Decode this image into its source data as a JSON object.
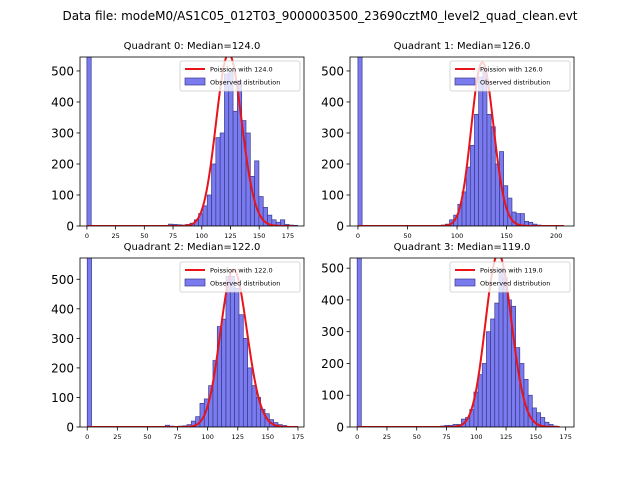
{
  "suptitle": "Data file: modeM0/AS1C05_012T03_9000003500_23690cztM0_level2_quad_clean.evt",
  "colors": {
    "bar_fill": "#7b7bf0",
    "bar_edge": "#3a3a8c",
    "poisson_line": "#e8141a",
    "axes": "#000000"
  },
  "legend_labels": {
    "observed": "Observed distribution"
  },
  "chart_data": [
    {
      "type": "bar",
      "title": "Quadrant 0: Median=124.0",
      "legend_poisson": "Poission with 124.0",
      "legend_location": "upper-right",
      "median": 124.0,
      "xlim": [
        -6,
        189
      ],
      "ylim": [
        0,
        545
      ],
      "xticks": [
        0,
        25,
        50,
        75,
        100,
        125,
        150,
        175
      ],
      "yticks": [
        0,
        100,
        200,
        300,
        400,
        500
      ],
      "bin_width": 3.75,
      "bins": [
        [
          0,
          3.75,
          565
        ],
        [
          71,
          74.75,
          6
        ],
        [
          74.75,
          78.5,
          5
        ],
        [
          78.5,
          82.25,
          4
        ],
        [
          82.25,
          86,
          3
        ],
        [
          86,
          89.75,
          5
        ],
        [
          89.75,
          93.5,
          9
        ],
        [
          93.5,
          97.25,
          20
        ],
        [
          97.25,
          101,
          40
        ],
        [
          101,
          104.75,
          65
        ],
        [
          104.75,
          108.5,
          100
        ],
        [
          108.5,
          112.25,
          200
        ],
        [
          112.25,
          116,
          285
        ],
        [
          116,
          119.75,
          300
        ],
        [
          119.75,
          123.5,
          490
        ],
        [
          123.5,
          127.25,
          500
        ],
        [
          127.25,
          131,
          370
        ],
        [
          131,
          134.75,
          470
        ],
        [
          134.75,
          138.5,
          340
        ],
        [
          138.5,
          142.25,
          300
        ],
        [
          142.25,
          146,
          160
        ],
        [
          146,
          149.75,
          210
        ],
        [
          149.75,
          153.5,
          95
        ],
        [
          153.5,
          157.25,
          60
        ],
        [
          157.25,
          161,
          35
        ],
        [
          161,
          164.75,
          20
        ],
        [
          164.75,
          168.5,
          12
        ],
        [
          168.5,
          172.25,
          20
        ],
        [
          172.25,
          176,
          5
        ],
        [
          176,
          179.75,
          3
        ],
        [
          179.75,
          183.5,
          2
        ]
      ],
      "poisson_range": [
        0,
        180
      ]
    },
    {
      "type": "bar",
      "title": "Quadrant 1: Median=126.0",
      "legend_poisson": "Poission with 126.0",
      "legend_location": "upper-right",
      "median": 126.0,
      "xlim": [
        -8,
        218
      ],
      "ylim": [
        0,
        545
      ],
      "xticks": [
        0,
        50,
        100,
        150,
        200
      ],
      "yticks": [
        0,
        100,
        200,
        300,
        400,
        500
      ],
      "bin_width": 4.2,
      "bins": [
        [
          0,
          4.2,
          565
        ],
        [
          84,
          88.2,
          3
        ],
        [
          88.2,
          92.4,
          6
        ],
        [
          92.4,
          96.6,
          20
        ],
        [
          96.6,
          100.8,
          35
        ],
        [
          100.8,
          105,
          70
        ],
        [
          105,
          109.2,
          110
        ],
        [
          109.2,
          113.4,
          190
        ],
        [
          113.4,
          117.6,
          260
        ],
        [
          117.6,
          121.8,
          360
        ],
        [
          121.8,
          126,
          480
        ],
        [
          126,
          130.2,
          500
        ],
        [
          130.2,
          134.4,
          360
        ],
        [
          134.4,
          138.6,
          320
        ],
        [
          138.6,
          142.8,
          200
        ],
        [
          142.8,
          147,
          240
        ],
        [
          147,
          151.2,
          130
        ],
        [
          151.2,
          155.4,
          90
        ],
        [
          155.4,
          159.6,
          45
        ],
        [
          159.6,
          163.8,
          40
        ],
        [
          163.8,
          168,
          40
        ],
        [
          168,
          172.2,
          15
        ],
        [
          172.2,
          176.4,
          12
        ],
        [
          176.4,
          180.6,
          6
        ],
        [
          180.6,
          184.8,
          3
        ],
        [
          184.8,
          189,
          2
        ],
        [
          189,
          193.2,
          1
        ]
      ],
      "poisson_range": [
        0,
        208
      ]
    },
    {
      "type": "bar",
      "title": "Quadrant 2: Median=122.0",
      "legend_poisson": "Poission with 122.0",
      "legend_location": "upper-right",
      "median": 122.0,
      "xlim": [
        -6,
        180
      ],
      "ylim": [
        0,
        572
      ],
      "xticks": [
        0,
        25,
        50,
        75,
        100,
        125,
        150,
        175
      ],
      "yticks": [
        0,
        100,
        200,
        300,
        400,
        500
      ],
      "bin_width": 3.6,
      "bins": [
        [
          0,
          3.6,
          580
        ],
        [
          64.8,
          68.4,
          6
        ],
        [
          68.4,
          72,
          3
        ],
        [
          72,
          75.6,
          2
        ],
        [
          75.6,
          79.2,
          3
        ],
        [
          79.2,
          82.8,
          4
        ],
        [
          82.8,
          86.4,
          8
        ],
        [
          86.4,
          90,
          20
        ],
        [
          90,
          93.6,
          35
        ],
        [
          93.6,
          97.2,
          80
        ],
        [
          97.2,
          100.8,
          95
        ],
        [
          100.8,
          104.4,
          140
        ],
        [
          104.4,
          108,
          225
        ],
        [
          108,
          111.6,
          340
        ],
        [
          111.6,
          115.2,
          365
        ],
        [
          115.2,
          118.8,
          510
        ],
        [
          118.8,
          122.4,
          510
        ],
        [
          122.4,
          126,
          470
        ],
        [
          126,
          129.6,
          380
        ],
        [
          129.6,
          133.2,
          300
        ],
        [
          133.2,
          136.8,
          200
        ],
        [
          136.8,
          140.4,
          140
        ],
        [
          140.4,
          144,
          100
        ],
        [
          144,
          147.6,
          60
        ],
        [
          147.6,
          151.2,
          45
        ],
        [
          151.2,
          154.8,
          25
        ],
        [
          154.8,
          158.4,
          15
        ],
        [
          158.4,
          162,
          8
        ],
        [
          162,
          165.6,
          5
        ],
        [
          165.6,
          169.2,
          2
        ]
      ],
      "poisson_range": [
        0,
        175
      ]
    },
    {
      "type": "bar",
      "title": "Quadrant 3: Median=119.0",
      "legend_poisson": "Poission with 119.0",
      "legend_location": "upper-right",
      "median": 119.0,
      "xlim": [
        -6,
        182
      ],
      "ylim": [
        0,
        532
      ],
      "xticks": [
        0,
        25,
        50,
        75,
        100,
        125,
        150,
        175
      ],
      "yticks": [
        0,
        100,
        200,
        300,
        400,
        500
      ],
      "bin_width": 3.5,
      "bins": [
        [
          0,
          3.5,
          545
        ],
        [
          59.5,
          63,
          2
        ],
        [
          63,
          66.5,
          2
        ],
        [
          66.5,
          70,
          2
        ],
        [
          70,
          73.5,
          3
        ],
        [
          73.5,
          77,
          5
        ],
        [
          77,
          80.5,
          5
        ],
        [
          80.5,
          84,
          8
        ],
        [
          84,
          87.5,
          8
        ],
        [
          87.5,
          91,
          25
        ],
        [
          91,
          94.5,
          30
        ],
        [
          94.5,
          98,
          55
        ],
        [
          98,
          101.5,
          110
        ],
        [
          101.5,
          105,
          165
        ],
        [
          105,
          108.5,
          200
        ],
        [
          108.5,
          112,
          300
        ],
        [
          112,
          115.5,
          340
        ],
        [
          115.5,
          119,
          390
        ],
        [
          119,
          122.5,
          500
        ],
        [
          122.5,
          126,
          470
        ],
        [
          126,
          129.5,
          400
        ],
        [
          129.5,
          133,
          380
        ],
        [
          133,
          136.5,
          250
        ],
        [
          136.5,
          140,
          200
        ],
        [
          140,
          143.5,
          150
        ],
        [
          143.5,
          147,
          100
        ],
        [
          147,
          150.5,
          60
        ],
        [
          150.5,
          154,
          45
        ],
        [
          154,
          157.5,
          30
        ],
        [
          157.5,
          161,
          15
        ],
        [
          161,
          164.5,
          8
        ],
        [
          164.5,
          168,
          3
        ]
      ],
      "poisson_range": [
        0,
        170
      ]
    }
  ]
}
